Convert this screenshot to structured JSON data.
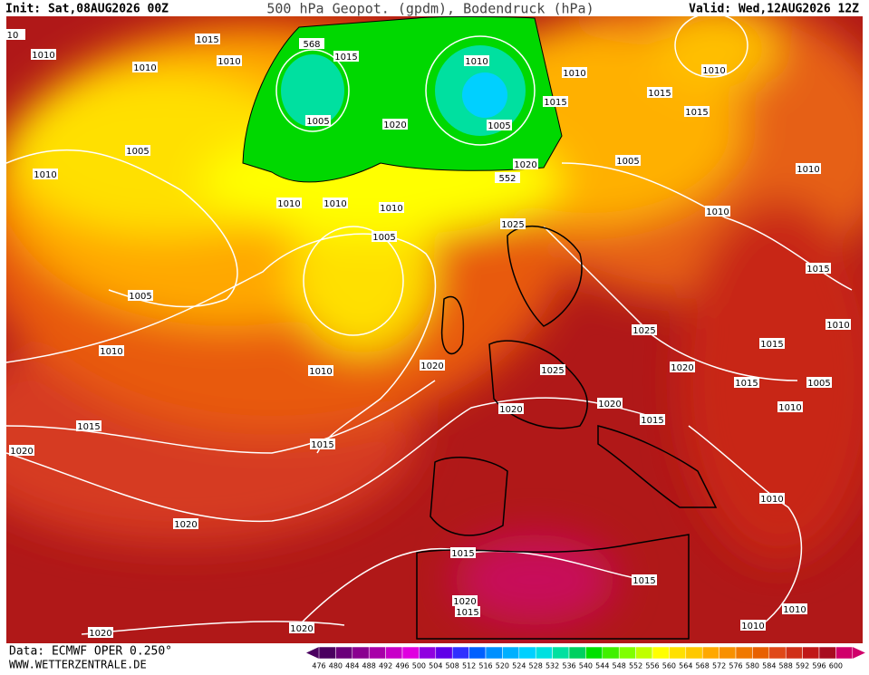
{
  "header": {
    "init": "Init: Sat,08AUG2026 00Z",
    "title": "500 hPa Geopot. (gpdm), Bodendruck (hPa)",
    "valid": "Valid: Wed,12AUG2026 12Z"
  },
  "footer": {
    "source": "Data: ECMWF OPER 0.250°",
    "site": "WWW.WETTERZENTRALE.DE"
  },
  "scale": {
    "values": [
      476,
      480,
      484,
      488,
      492,
      496,
      500,
      504,
      508,
      512,
      516,
      520,
      524,
      528,
      532,
      536,
      540,
      544,
      548,
      552,
      556,
      560,
      564,
      568,
      572,
      576,
      580,
      584,
      588,
      592,
      596,
      600
    ],
    "colors": [
      "#4b0060",
      "#6b007a",
      "#8a0090",
      "#a800a8",
      "#c800c8",
      "#e000e0",
      "#9000e0",
      "#6000e8",
      "#3030ff",
      "#0060ff",
      "#0090ff",
      "#00b0ff",
      "#00d0ff",
      "#00e0e0",
      "#00e0a0",
      "#00d060",
      "#00e000",
      "#40f000",
      "#80ff00",
      "#c0ff00",
      "#ffff00",
      "#ffe000",
      "#ffc800",
      "#ffa800",
      "#f89000",
      "#f07800",
      "#e86000",
      "#e04818",
      "#d03018",
      "#c01818",
      "#a80c20",
      "#d0006a"
    ]
  },
  "isobar_labels": [
    10,
    1010,
    1015,
    1010,
    1010,
    1015,
    1010,
    1010,
    1010,
    1015,
    1015,
    1015,
    1005,
    1020,
    1005,
    1005,
    1005,
    1010,
    1010,
    1020,
    552,
    1010,
    1010,
    1010,
    1010,
    1025,
    1005,
    1015,
    1005,
    1010,
    1025,
    1010,
    1015,
    1010,
    1020,
    1025,
    1020,
    1015,
    1005,
    1020,
    1020,
    1015,
    1010,
    1015,
    1015,
    1020,
    1010,
    1020,
    1015,
    1015,
    1020,
    1015,
    1010,
    1010,
    1020,
    1020,
    568
  ]
}
